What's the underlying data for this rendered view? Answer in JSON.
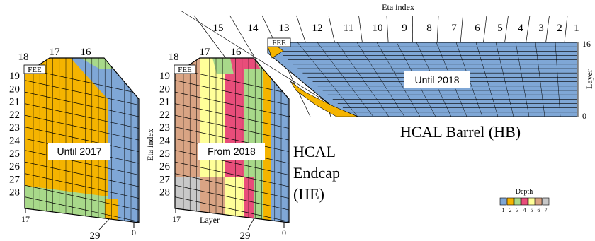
{
  "colors": {
    "depth1": "#7fa7d6",
    "depth2": "#f5b400",
    "depth3": "#a8d98a",
    "depth4": "#e84d7a",
    "depth5": "#ffff99",
    "depth6": "#d9a484",
    "depth7": "#c8c8c8"
  },
  "barrel": {
    "axis_title": "Eta index",
    "eta_labels": [
      "15",
      "14",
      "13",
      "12",
      "11",
      "10",
      "9",
      "8",
      "7",
      "6",
      "5",
      "4",
      "3",
      "2",
      "1"
    ],
    "fee_label": "FEE",
    "layer_top": "16",
    "layer_bottom": "0",
    "layer_axis_label": "Layer",
    "box_label": "Until 2018",
    "title": "HCAL  Barrel (HB)"
  },
  "endcap_left": {
    "top_labels": [
      "18",
      "17",
      "16"
    ],
    "fee_label": "FEE",
    "eta_labels": [
      "19",
      "20",
      "21",
      "22",
      "23",
      "24",
      "25",
      "26",
      "27",
      "28"
    ],
    "box_label": "Until 2017",
    "bottom_left": "17",
    "bottom_mid": "29",
    "bottom_right": "0"
  },
  "endcap_right": {
    "top_labels": [
      "18",
      "17",
      "16"
    ],
    "fee_label": "FEE",
    "eta_labels": [
      "19",
      "20",
      "21",
      "22",
      "23",
      "24",
      "25",
      "26",
      "27",
      "28"
    ],
    "eta_axis_label": "Eta index",
    "box_label": "From 2018",
    "bottom_left": "17",
    "layer_label": "— Layer —",
    "bottom_mid": "29",
    "bottom_right": "0"
  },
  "he_title": [
    "HCAL",
    "Endcap",
    "(HE)"
  ],
  "depth_legend": {
    "title": "Depth",
    "labels": [
      "1",
      "2",
      "3",
      "4",
      "5",
      "6",
      "7"
    ]
  }
}
